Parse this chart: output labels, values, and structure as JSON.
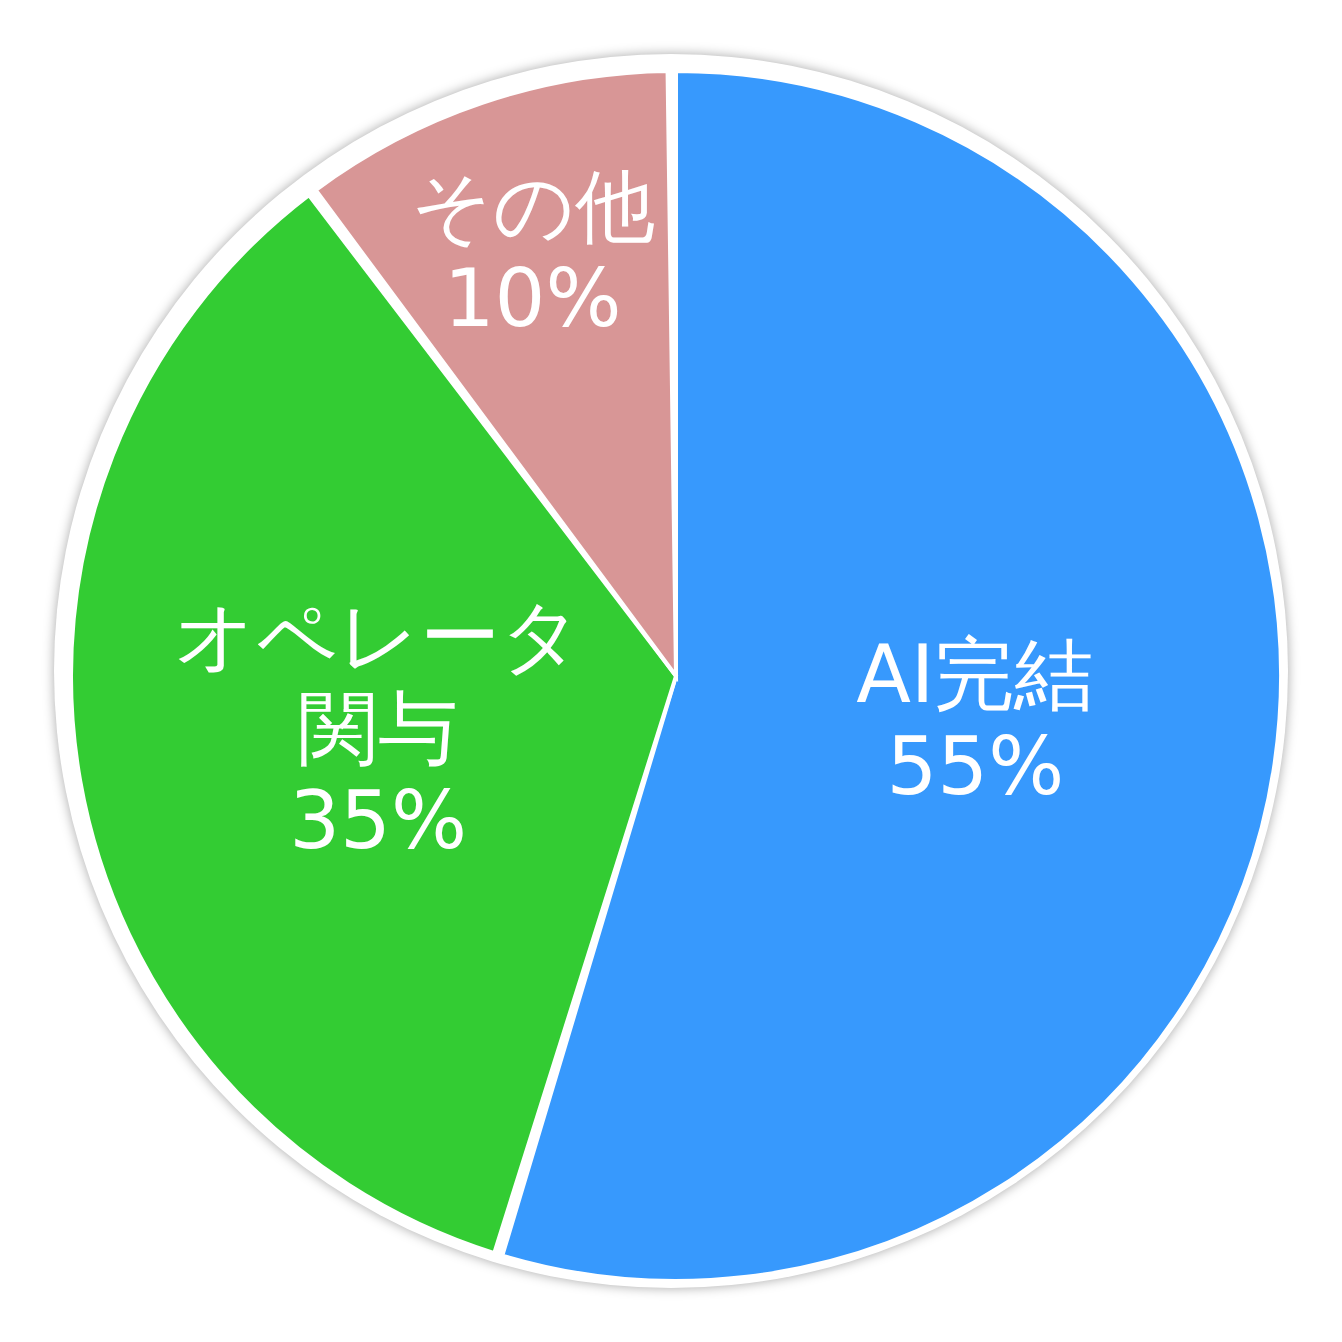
{
  "chart_data": {
    "type": "pie",
    "categories": [
      "AI完結",
      "オペレータ関与",
      "その他"
    ],
    "values": [
      55,
      35,
      10
    ],
    "colors": [
      "#3799fd",
      "#33cc33",
      "#d89696"
    ],
    "value_labels": [
      "55%",
      "35%",
      "10%"
    ]
  }
}
